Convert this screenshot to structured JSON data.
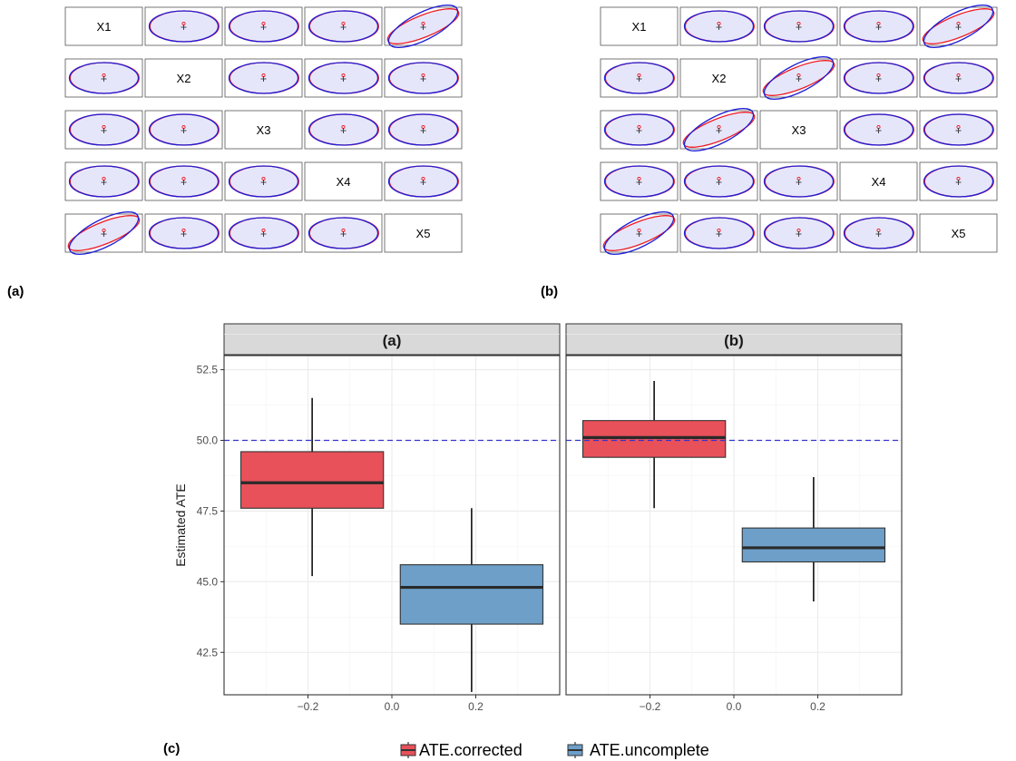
{
  "panel_labels": {
    "a": "(a)",
    "b": "(b)",
    "c": "(c)"
  },
  "variables": [
    "X1",
    "X2",
    "X3",
    "X4",
    "X5"
  ],
  "colors": {
    "ellipse_fill": "#e6e6fb",
    "ellipse_red": "#ee1c25",
    "ellipse_blue": "#1f1fd6",
    "corrected": "#e8515a",
    "uncomplete": "#6d9fc9",
    "reference_line": "#3333cc",
    "strip_bg": "#d9d9d9",
    "grid": "#ebebeb"
  },
  "chart_data": [
    {
      "type": "scatter-matrix",
      "panel": "(a)",
      "variables": [
        "X1",
        "X2",
        "X3",
        "X4",
        "X5"
      ],
      "elongated_pairs": [
        [
          "X1",
          "X5"
        ]
      ],
      "series": [
        {
          "name": "",
          "color": "red"
        },
        {
          "name": "",
          "color": "blue"
        }
      ]
    },
    {
      "type": "scatter-matrix",
      "panel": "(b)",
      "variables": [
        "X1",
        "X2",
        "X3",
        "X4",
        "X5"
      ],
      "elongated_pairs": [
        [
          "X1",
          "X5"
        ],
        [
          "X2",
          "X3"
        ]
      ],
      "series": [
        {
          "name": "",
          "color": "red"
        },
        {
          "name": "",
          "color": "blue"
        }
      ]
    },
    {
      "type": "boxplot",
      "panel": "(c)",
      "ylabel": "Estimated ATE",
      "xlabel": "",
      "ylim": [
        41.0,
        53.0
      ],
      "yticks": [
        "42.5",
        "45.0",
        "47.5",
        "50.0",
        "52.5"
      ],
      "xlim": [
        -0.4,
        0.4
      ],
      "xticks": [
        "-0.2",
        "0.0",
        "0.2"
      ],
      "reference_line": 50.0,
      "legend": {
        "position": "bottom",
        "entries": [
          "ATE.corrected",
          "ATE.uncomplete"
        ]
      },
      "facets": [
        {
          "label": "(a)",
          "boxes": [
            {
              "series": "ATE.corrected",
              "x": -0.19,
              "whisker_low": 45.2,
              "q1": 47.6,
              "median": 48.5,
              "q3": 49.6,
              "whisker_high": 51.5
            },
            {
              "series": "ATE.uncomplete",
              "x": 0.19,
              "whisker_low": 41.1,
              "q1": 43.5,
              "median": 44.8,
              "q3": 45.6,
              "whisker_high": 47.6
            }
          ]
        },
        {
          "label": "(b)",
          "boxes": [
            {
              "series": "ATE.corrected",
              "x": -0.19,
              "whisker_low": 47.6,
              "q1": 49.4,
              "median": 50.1,
              "q3": 50.7,
              "whisker_high": 52.1
            },
            {
              "series": "ATE.uncomplete",
              "x": 0.19,
              "whisker_low": 44.3,
              "q1": 45.7,
              "median": 46.2,
              "q3": 46.9,
              "whisker_high": 48.7
            }
          ]
        }
      ]
    }
  ]
}
